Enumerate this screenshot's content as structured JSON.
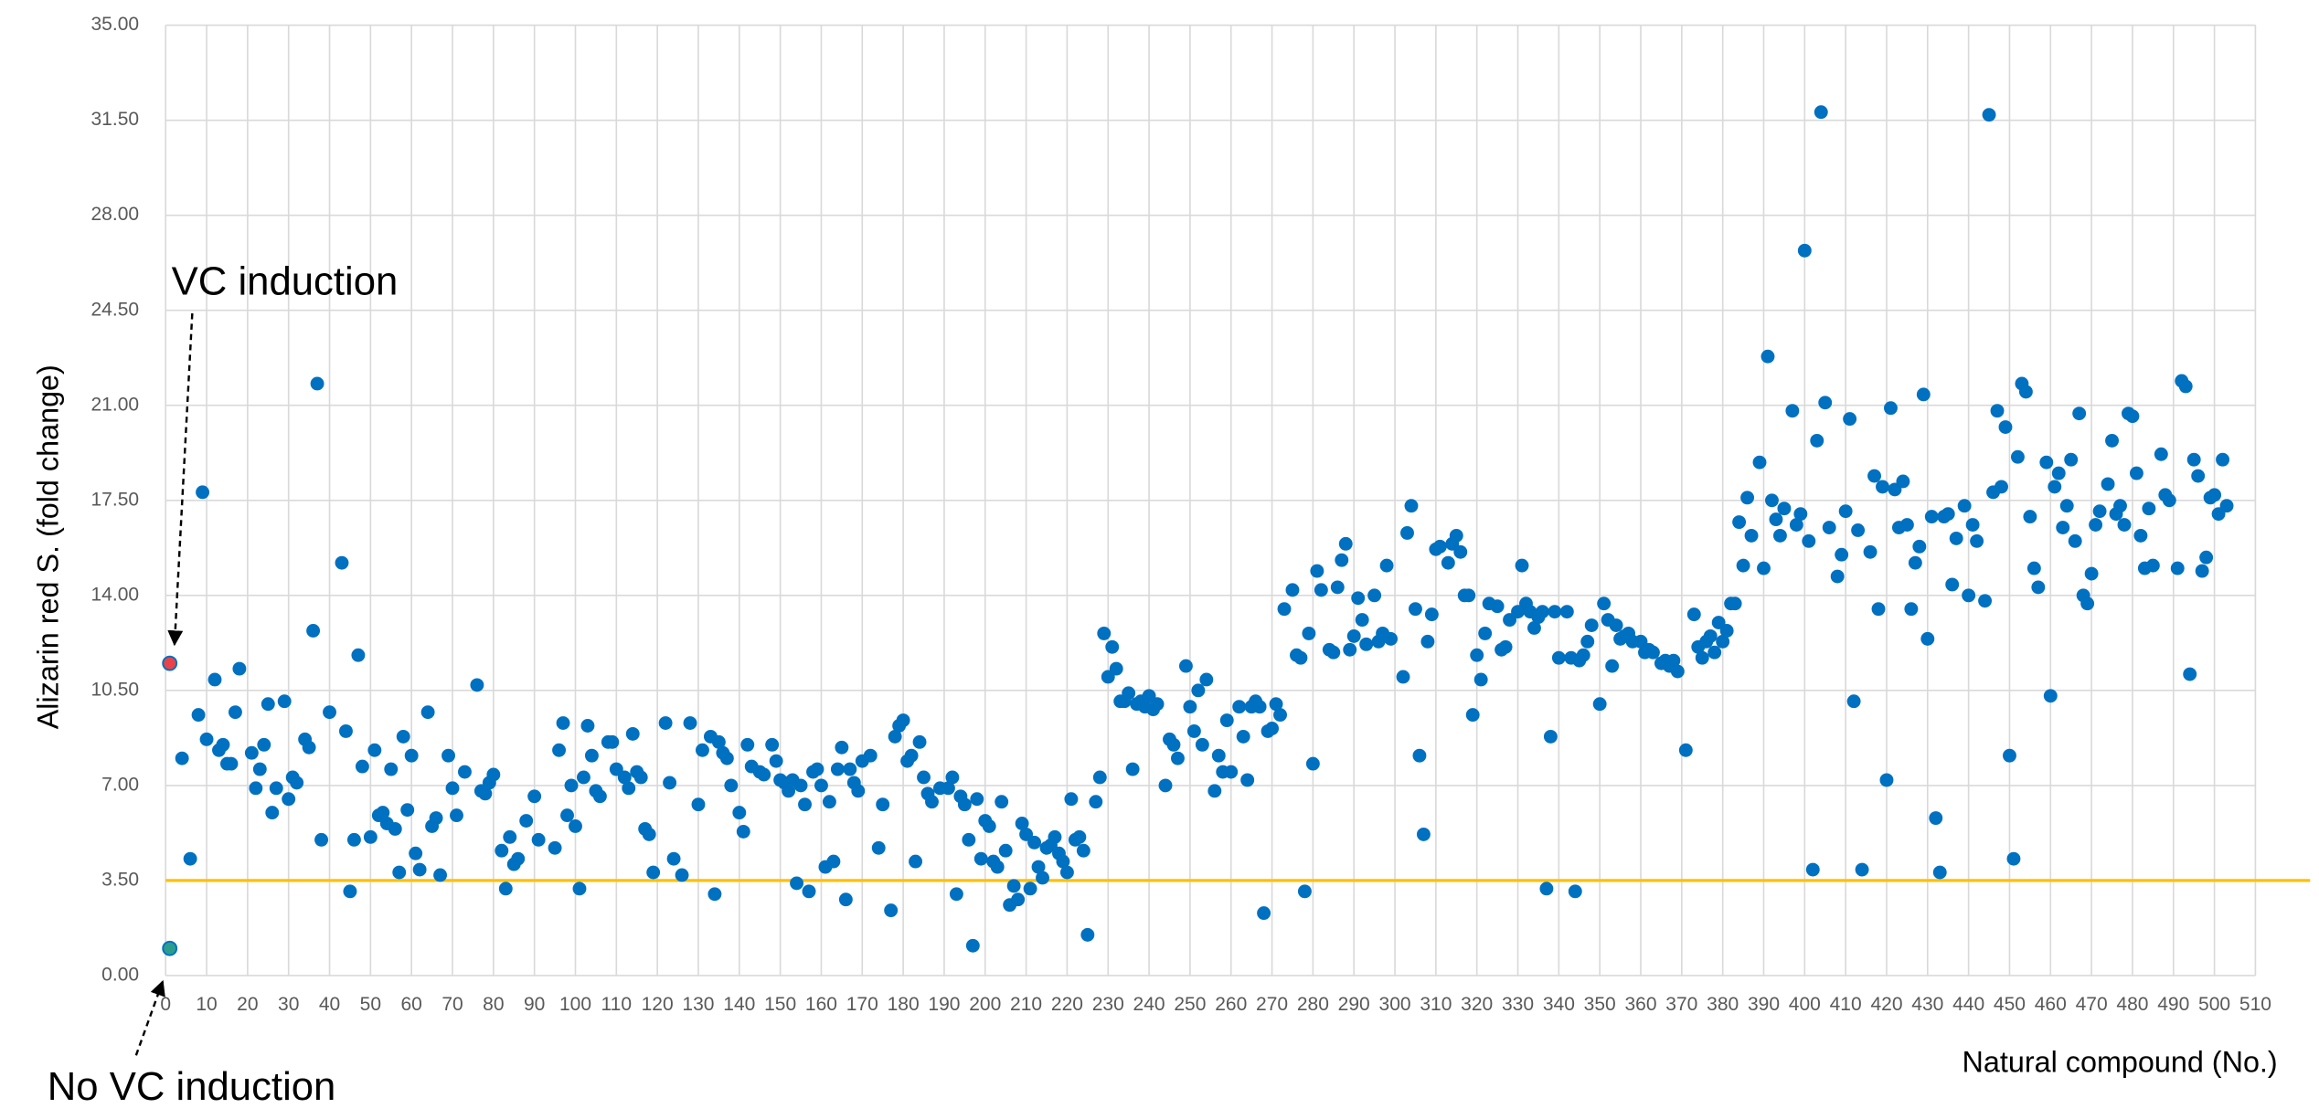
{
  "chart_data": {
    "type": "scatter",
    "y_label": "Alizarin red S. (fold change)",
    "x_label": "Natural compound (No.)",
    "annotations": [
      {
        "text": "VC induction"
      },
      {
        "text": "No VC induction"
      }
    ],
    "reference_line": {
      "value": 3.5,
      "color": "#ffc000"
    },
    "xlim": [
      0,
      510
    ],
    "ylim": [
      0,
      35
    ],
    "grid": true,
    "xticks": [
      0,
      10,
      20,
      30,
      40,
      50,
      60,
      70,
      80,
      90,
      100,
      110,
      120,
      130,
      140,
      150,
      160,
      170,
      180,
      190,
      200,
      210,
      220,
      230,
      240,
      250,
      260,
      270,
      280,
      290,
      300,
      310,
      320,
      330,
      340,
      350,
      360,
      370,
      380,
      390,
      400,
      410,
      420,
      430,
      440,
      450,
      460,
      470,
      480,
      490,
      500,
      510
    ],
    "yticks": [
      {
        "value": 0,
        "label": "0.00"
      },
      {
        "value": 3.5,
        "label": "3.50"
      },
      {
        "value": 7,
        "label": "7.00"
      },
      {
        "value": 10.5,
        "label": "10.50"
      },
      {
        "value": 14,
        "label": "14.00"
      },
      {
        "value": 17.5,
        "label": "17.50"
      },
      {
        "value": 21,
        "label": "21.00"
      },
      {
        "value": 24.5,
        "label": "24.50"
      },
      {
        "value": 28,
        "label": "28.00"
      },
      {
        "value": 31.5,
        "label": "31.50"
      },
      {
        "value": 35,
        "label": "35.00"
      }
    ],
    "series": [
      {
        "color": "#0070c0",
        "x": [
          4,
          6,
          8,
          9,
          10,
          12,
          13,
          14,
          15,
          16,
          17,
          18,
          21,
          22,
          23,
          24,
          25,
          26,
          27,
          29,
          30,
          31,
          32,
          34,
          35,
          36,
          37,
          38,
          40,
          43,
          44,
          45,
          46,
          47,
          48,
          50,
          51,
          52,
          53,
          54,
          55,
          56,
          57,
          58,
          59,
          60,
          61,
          62,
          64,
          65,
          66,
          67,
          69,
          70,
          71,
          73,
          76,
          77,
          78,
          79,
          80,
          82,
          83,
          84,
          85,
          86,
          88,
          90,
          91,
          95,
          96,
          97,
          98,
          99,
          100,
          101,
          102,
          103,
          104,
          105,
          106,
          108,
          109,
          110,
          112,
          113,
          114,
          115,
          116,
          117,
          118,
          119,
          122,
          123,
          124,
          126,
          128,
          130,
          131,
          133,
          134,
          135,
          136,
          137,
          138,
          140,
          141,
          142,
          143,
          145,
          146,
          148,
          149,
          150,
          151,
          152,
          153,
          154,
          155,
          156,
          157,
          158,
          159,
          160,
          161,
          162,
          163,
          164,
          165,
          166,
          167,
          168,
          169,
          170,
          172,
          174,
          175,
          177,
          178,
          179,
          180,
          181,
          182,
          183,
          184,
          185,
          186,
          187,
          189,
          191,
          192,
          193,
          194,
          195,
          196,
          197,
          198,
          199,
          200,
          201,
          202,
          203,
          204,
          205,
          206,
          207,
          208,
          209,
          210,
          211,
          212,
          213,
          214,
          215,
          216,
          217,
          218,
          219,
          220,
          221,
          222,
          223,
          224,
          225,
          227,
          228,
          229,
          230,
          231,
          232,
          233,
          234,
          235,
          236,
          237,
          238,
          239,
          240,
          241,
          242,
          244,
          245,
          246,
          247,
          249,
          250,
          251,
          252,
          253,
          254,
          256,
          257,
          258,
          259,
          260,
          262,
          263,
          264,
          265,
          266,
          267,
          268,
          269,
          270,
          271,
          272,
          273,
          275,
          276,
          277,
          278,
          279,
          280,
          281,
          282,
          284,
          285,
          286,
          287,
          288,
          289,
          290,
          291,
          292,
          293,
          295,
          296,
          297,
          298,
          299,
          302,
          303,
          304,
          305,
          306,
          307,
          308,
          309,
          310,
          311,
          313,
          314,
          315,
          316,
          317,
          318,
          319,
          320,
          321,
          322,
          323,
          325,
          326,
          327,
          328,
          330,
          331,
          332,
          333,
          334,
          335,
          336,
          337,
          338,
          339,
          340,
          342,
          343,
          344,
          345,
          346,
          347,
          348,
          350,
          351,
          352,
          353,
          354,
          355,
          356,
          357,
          358,
          360,
          361,
          362,
          363,
          365,
          366,
          367,
          368,
          369,
          371,
          373,
          374,
          375,
          376,
          377,
          378,
          379,
          380,
          381,
          382,
          383,
          384,
          385,
          386,
          387,
          389,
          390,
          391,
          392,
          393,
          394,
          395,
          397,
          398,
          399,
          400,
          401,
          402,
          403,
          404,
          405,
          406,
          408,
          409,
          410,
          411,
          412,
          413,
          414,
          416,
          417,
          418,
          419,
          420,
          421,
          422,
          423,
          424,
          425,
          426,
          427,
          428,
          429,
          430,
          431,
          432,
          433,
          434,
          435,
          436,
          437,
          439,
          440,
          441,
          442,
          444,
          445,
          446,
          447,
          448,
          449,
          450,
          451,
          452,
          453,
          454,
          455,
          456,
          457,
          459,
          460,
          461,
          462,
          463,
          464,
          465,
          466,
          467,
          468,
          469,
          470,
          471,
          472,
          474,
          475,
          476,
          477,
          478,
          479,
          480,
          481,
          482,
          483,
          484,
          485,
          487,
          488,
          489,
          491,
          492,
          493,
          494,
          495,
          496,
          497,
          498,
          499,
          500,
          501,
          502,
          503
        ],
        "values": [
          8.0,
          4.3,
          9.6,
          17.8,
          8.7,
          10.9,
          8.3,
          8.5,
          7.8,
          7.8,
          9.7,
          11.3,
          8.2,
          6.9,
          7.6,
          8.5,
          10.0,
          6.0,
          6.9,
          10.1,
          6.5,
          7.3,
          7.1,
          8.7,
          8.4,
          12.7,
          21.8,
          5.0,
          9.7,
          15.2,
          9.0,
          3.1,
          5.0,
          11.8,
          7.7,
          5.1,
          8.3,
          5.9,
          6.0,
          5.6,
          7.6,
          5.4,
          3.8,
          8.8,
          6.1,
          8.1,
          4.5,
          3.9,
          9.7,
          5.5,
          5.8,
          3.7,
          8.1,
          6.9,
          5.9,
          7.5,
          10.7,
          6.8,
          6.7,
          7.1,
          7.4,
          4.6,
          3.2,
          5.1,
          4.1,
          4.3,
          5.7,
          6.6,
          5.0,
          4.7,
          8.3,
          9.3,
          5.9,
          7.0,
          5.5,
          3.2,
          7.3,
          9.2,
          8.1,
          6.8,
          6.6,
          8.6,
          8.6,
          7.6,
          7.3,
          6.9,
          8.9,
          7.5,
          7.3,
          5.4,
          5.2,
          3.8,
          9.3,
          7.1,
          4.3,
          3.7,
          9.3,
          6.3,
          8.3,
          8.8,
          3.0,
          8.6,
          8.2,
          8.0,
          7.0,
          6.0,
          5.3,
          8.5,
          7.7,
          7.5,
          7.4,
          8.5,
          7.9,
          7.2,
          7.1,
          6.8,
          7.2,
          3.4,
          7.0,
          6.3,
          3.1,
          7.5,
          7.6,
          7.0,
          4.0,
          6.4,
          4.2,
          7.6,
          8.4,
          2.8,
          7.6,
          7.1,
          6.8,
          7.9,
          8.1,
          4.7,
          6.3,
          2.4,
          8.8,
          9.2,
          9.4,
          7.9,
          8.1,
          4.2,
          8.6,
          7.3,
          6.7,
          6.4,
          6.9,
          6.9,
          7.3,
          3.0,
          6.6,
          6.3,
          5.0,
          1.1,
          6.5,
          4.3,
          5.7,
          5.5,
          4.2,
          4.0,
          6.4,
          4.6,
          2.6,
          3.3,
          2.8,
          5.6,
          5.2,
          3.2,
          4.9,
          4.0,
          3.6,
          4.7,
          4.8,
          5.1,
          4.5,
          4.2,
          3.8,
          6.5,
          5.0,
          5.1,
          4.6,
          1.5,
          6.4,
          7.3,
          12.6,
          11.0,
          12.1,
          11.3,
          10.1,
          10.1,
          10.4,
          7.6,
          10.0,
          10.1,
          9.9,
          10.3,
          9.8,
          10.0,
          7.0,
          8.7,
          8.5,
          8.0,
          11.4,
          9.9,
          9.0,
          10.5,
          8.5,
          10.9,
          6.8,
          8.1,
          7.5,
          9.4,
          7.5,
          9.9,
          8.8,
          7.2,
          9.9,
          10.1,
          9.9,
          2.3,
          9.0,
          9.1,
          10.0,
          9.6,
          13.5,
          14.2,
          11.8,
          11.7,
          3.1,
          12.6,
          7.8,
          14.9,
          14.2,
          12.0,
          11.9,
          14.3,
          15.3,
          15.9,
          12.0,
          12.5,
          13.9,
          13.1,
          12.2,
          14.0,
          12.3,
          12.6,
          15.1,
          12.4,
          11.0,
          16.3,
          17.3,
          13.5,
          8.1,
          5.2,
          12.3,
          13.3,
          15.7,
          15.8,
          15.2,
          15.9,
          16.2,
          15.6,
          14.0,
          14.0,
          9.6,
          11.8,
          10.9,
          12.6,
          13.7,
          13.6,
          12.0,
          12.1,
          13.1,
          13.4,
          15.1,
          13.7,
          13.4,
          12.8,
          13.2,
          13.4,
          3.2,
          8.8,
          13.4,
          11.7,
          13.4,
          11.7,
          3.1,
          11.6,
          11.8,
          12.3,
          12.9,
          10.0,
          13.7,
          13.1,
          11.4,
          12.9,
          12.4,
          12.5,
          12.6,
          12.3,
          12.3,
          11.9,
          12.0,
          11.9,
          11.5,
          11.6,
          11.4,
          11.6,
          11.2,
          8.3,
          13.3,
          12.1,
          11.7,
          12.3,
          12.5,
          11.9,
          13.0,
          12.3,
          12.7,
          13.7,
          13.7,
          16.7,
          15.1,
          17.6,
          16.2,
          18.9,
          15.0,
          22.8,
          17.5,
          16.8,
          16.2,
          17.2,
          20.8,
          16.6,
          17.0,
          26.7,
          16.0,
          3.9,
          19.7,
          31.8,
          21.1,
          16.5,
          14.7,
          15.5,
          17.1,
          20.5,
          10.1,
          16.4,
          3.9,
          15.6,
          18.4,
          13.5,
          18.0,
          7.2,
          20.9,
          17.9,
          16.5,
          18.2,
          16.6,
          13.5,
          15.2,
          15.8,
          21.4,
          12.4,
          16.9,
          5.8,
          3.8,
          16.9,
          17.0,
          14.4,
          16.1,
          17.3,
          14.0,
          16.6,
          16.0,
          13.8,
          31.7,
          17.8,
          20.8,
          18.0,
          20.2,
          8.1,
          4.3,
          19.1,
          21.8,
          21.5,
          16.9,
          15.0,
          14.3,
          18.9,
          10.3,
          18.0,
          18.5,
          16.5,
          17.3,
          19.0,
          16.0,
          20.7,
          14.0,
          13.7,
          14.8,
          16.6,
          17.1,
          18.1,
          19.7,
          17.0,
          17.3,
          16.6,
          20.7,
          20.6,
          18.5,
          16.2,
          15.0,
          17.2,
          15.1,
          19.2,
          17.7,
          17.5,
          15.0,
          21.9,
          21.7,
          11.1,
          19.0,
          18.4,
          14.9,
          15.4,
          17.6,
          17.7,
          17.0,
          19.0,
          17.3
        ]
      },
      {
        "color": "#2a9d8f",
        "x": [
          1
        ],
        "values": [
          1.0
        ]
      },
      {
        "color": "#e8434b",
        "x": [
          1
        ],
        "values": [
          11.5
        ]
      }
    ]
  }
}
